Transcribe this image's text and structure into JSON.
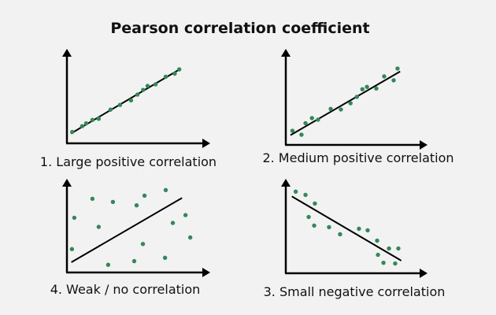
{
  "title": "Pearson correlation coefficient",
  "colors": {
    "background": "#f2f2f2",
    "point": "#2e8b57",
    "line": "#000000"
  },
  "chart_data": [
    {
      "type": "scatter",
      "label": "1. Large positive correlation",
      "xlim": [
        0,
        100
      ],
      "ylim": [
        0,
        100
      ],
      "points": [
        [
          3.8,
          12.3
        ],
        [
          10.9,
          18.6
        ],
        [
          13.8,
          21.7
        ],
        [
          18.3,
          25.4
        ],
        [
          22.8,
          26.6
        ],
        [
          31.3,
          36.6
        ],
        [
          38.1,
          41.7
        ],
        [
          46.0,
          46.6
        ],
        [
          50.6,
          52.9
        ],
        [
          54.7,
          58.0
        ],
        [
          57.9,
          62.3
        ],
        [
          63.6,
          64.0
        ],
        [
          70.9,
          72.3
        ],
        [
          77.4,
          75.7
        ],
        [
          80.6,
          80.3
        ]
      ],
      "fit_line": [
        [
          2.8,
          10.6
        ],
        [
          80.2,
          79.7
        ]
      ]
    },
    {
      "type": "scatter",
      "label": "2. Medium positive correlation",
      "xlim": [
        0,
        100
      ],
      "ylim": [
        0,
        100
      ],
      "points": [
        [
          4.8,
          15.1
        ],
        [
          11.4,
          10.9
        ],
        [
          14.3,
          23.2
        ],
        [
          19.0,
          28.6
        ],
        [
          23.4,
          26.9
        ],
        [
          32.6,
          38.4
        ],
        [
          40.0,
          37.8
        ],
        [
          47.0,
          44.5
        ],
        [
          51.6,
          51.3
        ],
        [
          55.6,
          59.4
        ],
        [
          58.9,
          61.9
        ],
        [
          65.7,
          60.2
        ],
        [
          71.4,
          73.1
        ],
        [
          78.3,
          68.9
        ],
        [
          81.1,
          81.5
        ]
      ],
      "fit_line": [
        [
          3.4,
          10.4
        ],
        [
          83.0,
          78.4
        ]
      ]
    },
    {
      "type": "scatter",
      "label": "4. Weak / no correlation",
      "xlim": [
        0,
        100
      ],
      "ylim": [
        0,
        100
      ],
      "points": [
        [
          5.3,
          59.9
        ],
        [
          18.3,
          80.7
        ],
        [
          33.0,
          77.2
        ],
        [
          55.7,
          84.1
        ],
        [
          50.0,
          73.5
        ],
        [
          70.9,
          90.2
        ],
        [
          22.8,
          49.9
        ],
        [
          3.6,
          25.6
        ],
        [
          85.1,
          62.8
        ],
        [
          76.0,
          54.2
        ],
        [
          88.5,
          38.3
        ],
        [
          54.5,
          31.2
        ],
        [
          29.6,
          8.4
        ],
        [
          48.3,
          12.4
        ],
        [
          70.4,
          16.1
        ]
      ],
      "fit_line": [
        [
          3.2,
          11.2
        ],
        [
          82.6,
          81.6
        ]
      ]
    },
    {
      "type": "scatter",
      "label": "3. Small negative correlation",
      "xlim": [
        0,
        100
      ],
      "ylim": [
        0,
        100
      ],
      "points": [
        [
          7.2,
          88.6
        ],
        [
          14.3,
          85.1
        ],
        [
          21.1,
          75.7
        ],
        [
          16.6,
          61.1
        ],
        [
          20.6,
          51.7
        ],
        [
          31.4,
          50.0
        ],
        [
          39.4,
          42.3
        ],
        [
          53.1,
          48.3
        ],
        [
          59.4,
          46.6
        ],
        [
          66.3,
          35.4
        ],
        [
          74.9,
          26.9
        ],
        [
          81.7,
          26.9
        ],
        [
          66.9,
          20.0
        ],
        [
          70.9,
          11.4
        ],
        [
          79.4,
          10.6
        ]
      ],
      "fit_line": [
        [
          4.4,
          83.4
        ],
        [
          83.8,
          13.7
        ]
      ]
    }
  ]
}
